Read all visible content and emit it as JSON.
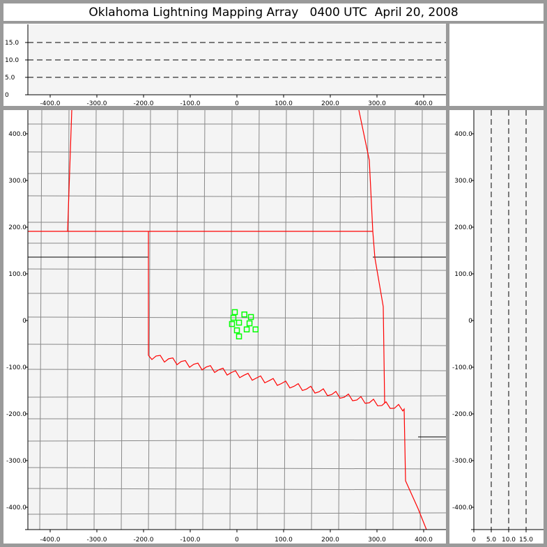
{
  "title": "Oklahoma Lightning Mapping Array   0400 UTC  April 20, 2008",
  "colors": {
    "background": "#9a9a9a",
    "plot_bg": "#f4f4f4",
    "state_border_red": "#ff0000",
    "station": "#00ff00",
    "county_line": "#888888"
  },
  "chart_data": [
    {
      "type": "line",
      "panel": "altitude-vs-east-west",
      "x_ticks": [
        "-400.0",
        "-300.0",
        "-200.0",
        "-100.0",
        "0",
        "100.0",
        "200.0",
        "300.0",
        "400.0"
      ],
      "x_tick_values": [
        -400,
        -300,
        -200,
        -100,
        0,
        100,
        200,
        300,
        400
      ],
      "y_ticks": [
        "0",
        "5.0",
        "10.0",
        "15.0"
      ],
      "y_tick_values": [
        0,
        5,
        10,
        15
      ],
      "xlim": [
        -450,
        450
      ],
      "ylim": [
        0,
        20
      ],
      "reference_lines": [
        5,
        10,
        15
      ],
      "reference_line_style": "dashed"
    },
    {
      "type": "scatter",
      "panel": "plan-view-map",
      "x_ticks": [
        "-400.0",
        "-300.0",
        "-200.0",
        "-100.0",
        "0",
        "100.0",
        "200.0",
        "300.0",
        "400.0"
      ],
      "x_tick_values": [
        -400,
        -300,
        -200,
        -100,
        0,
        100,
        200,
        300,
        400
      ],
      "y_ticks": [
        "400.0",
        "300.0",
        "200.0",
        "100.0",
        "0",
        "-100.0",
        "-200.0",
        "-300.0",
        "-400.0"
      ],
      "y_tick_values": [
        400,
        300,
        200,
        100,
        0,
        -100,
        -200,
        -300,
        -400
      ],
      "xlim": [
        -450,
        450
      ],
      "ylim": [
        -450,
        450
      ],
      "marker": "square",
      "stations": [
        {
          "x": -4.5,
          "y": 18
        },
        {
          "x": 16,
          "y": 13
        },
        {
          "x": 30,
          "y": 7.5
        },
        {
          "x": -7.5,
          "y": 6
        },
        {
          "x": 4.5,
          "y": -4.5
        },
        {
          "x": 27,
          "y": -6
        },
        {
          "x": -10.5,
          "y": -7.5
        },
        {
          "x": 0,
          "y": -21
        },
        {
          "x": 21,
          "y": -19
        },
        {
          "x": 40,
          "y": -19
        },
        {
          "x": 4.5,
          "y": -34
        }
      ]
    },
    {
      "type": "line",
      "panel": "north-south-vs-altitude",
      "x_ticks": [
        "0",
        "5.0",
        "10.0",
        "15.0"
      ],
      "x_tick_values": [
        0,
        5,
        10,
        15
      ],
      "y_ticks": [
        "400.0",
        "300.0",
        "200.0",
        "100.0",
        "0",
        "-100.0",
        "-200.0",
        "-300.0",
        "-400.0"
      ],
      "y_tick_values": [
        400,
        300,
        200,
        100,
        0,
        -100,
        -200,
        -300,
        -400
      ],
      "xlim": [
        0,
        20
      ],
      "ylim": [
        -450,
        450
      ],
      "reference_lines": [
        5,
        10,
        15
      ],
      "reference_line_style": "dashed"
    }
  ]
}
